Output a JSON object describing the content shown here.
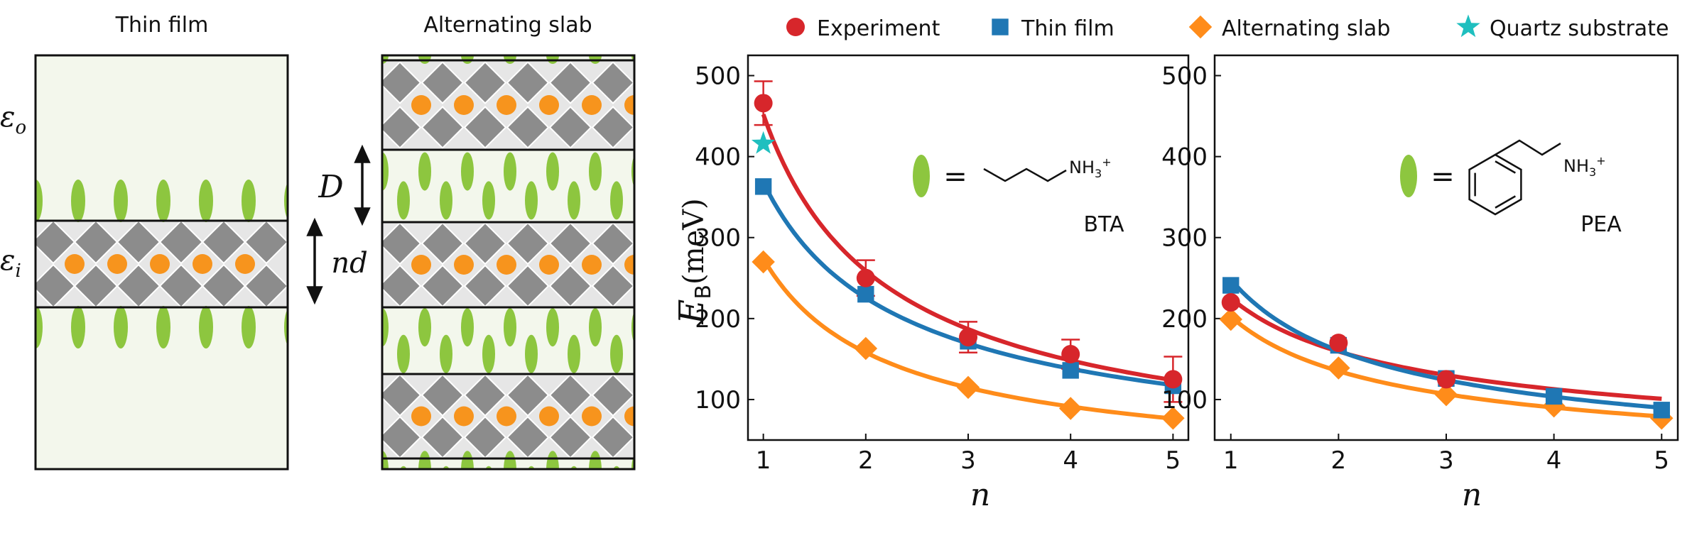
{
  "schematics": {
    "thin_film": {
      "title": "Thin film",
      "eps_outer": "ε",
      "eps_outer_sub": "o",
      "eps_inner": "ε",
      "eps_inner_sub": "i"
    },
    "alt_slab": {
      "title": "Alternating slab",
      "barrier_label": "D",
      "well_label": "nd"
    },
    "colors": {
      "organic": "#8dc63f",
      "octahedra": "#8c8c8c",
      "cation": "#f7941d",
      "film_bg": "#f3f7ec",
      "well_bg": "#e6e6e6"
    }
  },
  "legend": {
    "items": [
      {
        "label": "Experiment",
        "marker": "circle",
        "color": "#d7262b"
      },
      {
        "label": "Thin film",
        "marker": "square",
        "color": "#1f77b4"
      },
      {
        "label": "Alternating slab",
        "marker": "diamond",
        "color": "#ff8c1a"
      },
      {
        "label": "Quartz substrate",
        "marker": "star",
        "color": "#1fbfbf"
      }
    ]
  },
  "chart_data": [
    {
      "type": "scatter",
      "panel": "BTA",
      "xlabel": "n",
      "ylabel": "E_B (meV)",
      "ylabel_main": "E",
      "ylabel_sub": "B",
      "ylabel_unit": "(meV)",
      "x": [
        1,
        2,
        3,
        4,
        5
      ],
      "xlim": [
        0.85,
        5.15
      ],
      "ylim": [
        50,
        525
      ],
      "yticks": [
        100,
        200,
        300,
        400,
        500
      ],
      "molecule_label": "BTA",
      "molecule_group": "NH3+",
      "equals": "=",
      "series": [
        {
          "name": "Experiment",
          "values": [
            466,
            250,
            177,
            156,
            125
          ],
          "errors": [
            27,
            22,
            19,
            18,
            28
          ],
          "color": "#d7262b",
          "marker": "circle"
        },
        {
          "name": "Thin film",
          "values": [
            363,
            230,
            172,
            136,
            117
          ],
          "color": "#1f77b4",
          "marker": "square"
        },
        {
          "name": "Alternating slab",
          "values": [
            270,
            163,
            115,
            89,
            77
          ],
          "color": "#ff8c1a",
          "marker": "diamond"
        },
        {
          "name": "Quartz substrate",
          "values": [
            416,
            null,
            null,
            null,
            null
          ],
          "color": "#1fbfbf",
          "marker": "star"
        }
      ]
    },
    {
      "type": "scatter",
      "panel": "PEA",
      "xlabel": "n",
      "x": [
        1,
        2,
        3,
        4,
        5
      ],
      "xlim": [
        0.85,
        5.15
      ],
      "ylim": [
        50,
        525
      ],
      "yticks": [
        100,
        200,
        300,
        400,
        500
      ],
      "molecule_label": "PEA",
      "molecule_group": "NH3+",
      "equals": "=",
      "series": [
        {
          "name": "Experiment",
          "values": [
            220,
            170,
            125,
            null,
            null
          ],
          "color": "#d7262b",
          "marker": "circle"
        },
        {
          "name": "Thin film",
          "values": [
            241,
            167,
            126,
            104,
            87
          ],
          "color": "#1f77b4",
          "marker": "square"
        },
        {
          "name": "Alternating slab",
          "values": [
            199,
            139,
            106,
            92,
            77
          ],
          "color": "#ff8c1a",
          "marker": "diamond"
        }
      ]
    }
  ]
}
